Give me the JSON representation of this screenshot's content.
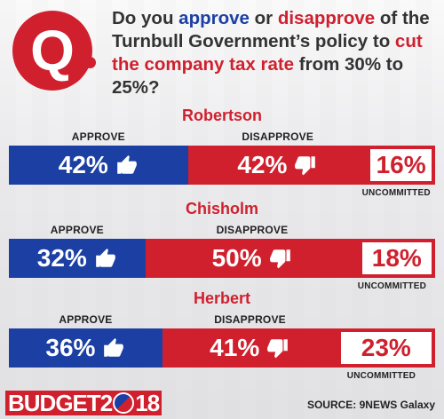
{
  "question": {
    "badge": "Q",
    "part1": "Do you ",
    "approve": "approve",
    "or": " or ",
    "disapprove": "disapprove",
    "part2": " of the Turnbull Government’s policy to ",
    "cut": "cut the company tax rate",
    "part3": " from 30% to 25%?"
  },
  "labels": {
    "approve": "APPROVE",
    "disapprove": "DISAPPROVE",
    "uncommitted": "UNCOMMITTED"
  },
  "colors": {
    "approve": "#1c3fa3",
    "disapprove": "#d0202e",
    "uncommitted_bg": "#ffffff"
  },
  "chart_data": {
    "type": "bar",
    "stacked": true,
    "orientation": "horizontal",
    "categories": [
      "Robertson",
      "Chisholm",
      "Herbert"
    ],
    "series": [
      {
        "name": "APPROVE",
        "values": [
          42,
          32,
          36
        ]
      },
      {
        "name": "DISAPPROVE",
        "values": [
          42,
          50,
          41
        ]
      },
      {
        "name": "UNCOMMITTED",
        "values": [
          16,
          18,
          23
        ]
      }
    ],
    "value_suffix": "%"
  },
  "icons": {
    "approve": "thumbs-up-icon",
    "disapprove": "thumbs-down-icon"
  },
  "footer": {
    "brand_word": "BUDGET",
    "brand_year_a": "2",
    "brand_year_b": "18",
    "source": "SOURCE: 9NEWS Galaxy"
  }
}
